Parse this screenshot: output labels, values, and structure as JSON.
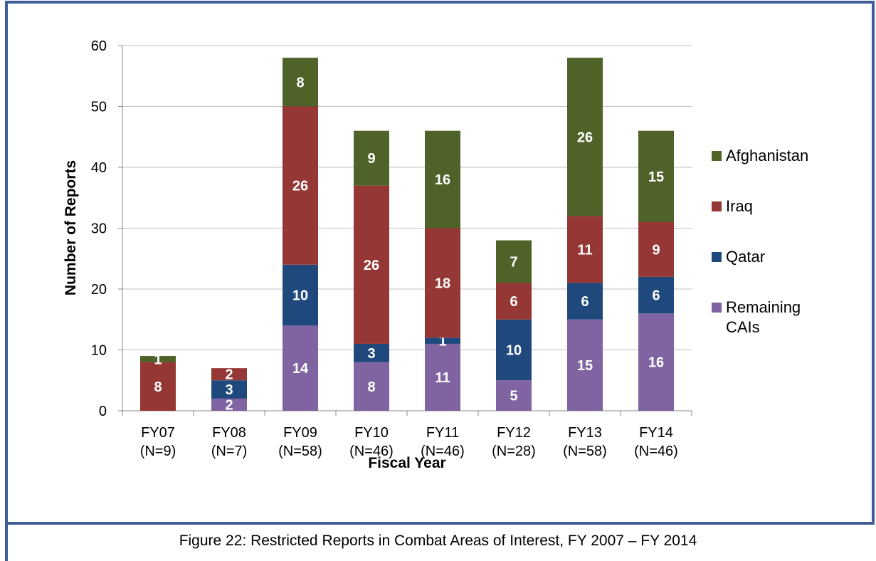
{
  "chart_data": {
    "type": "stacked-bar",
    "caption": "Figure 22: Restricted Reports in Combat Areas of Interest, FY 2007 – FY 2014",
    "x_label": "Fiscal Year",
    "y_label": "Number of Reports",
    "categories": [
      [
        "FY07",
        "(N=9)"
      ],
      [
        "FY08",
        "(N=7)"
      ],
      [
        "FY09",
        "(N=58)"
      ],
      [
        "FY10",
        "(N=46)"
      ],
      [
        "FY11",
        "(N=46)"
      ],
      [
        "FY12",
        "(N=28)"
      ],
      [
        "FY13",
        "(N=58)"
      ],
      [
        "FY14",
        "(N=46)"
      ]
    ],
    "series": [
      {
        "name": "Remaining CAIs",
        "color": "#8064a2",
        "values": [
          0,
          2,
          14,
          8,
          11,
          5,
          15,
          16
        ]
      },
      {
        "name": "Qatar",
        "color": "#1f497d",
        "values": [
          0,
          3,
          10,
          3,
          1,
          10,
          6,
          6
        ]
      },
      {
        "name": "Iraq",
        "color": "#953735",
        "values": [
          8,
          2,
          26,
          26,
          18,
          6,
          11,
          9
        ]
      },
      {
        "name": "Afghanistan",
        "color": "#4f6228",
        "values": [
          1,
          0,
          8,
          9,
          16,
          7,
          26,
          15
        ]
      }
    ],
    "ylim": [
      0,
      60
    ],
    "yticks": [
      0,
      10,
      20,
      30,
      40,
      50,
      60
    ],
    "grid": true,
    "legend": "right"
  }
}
